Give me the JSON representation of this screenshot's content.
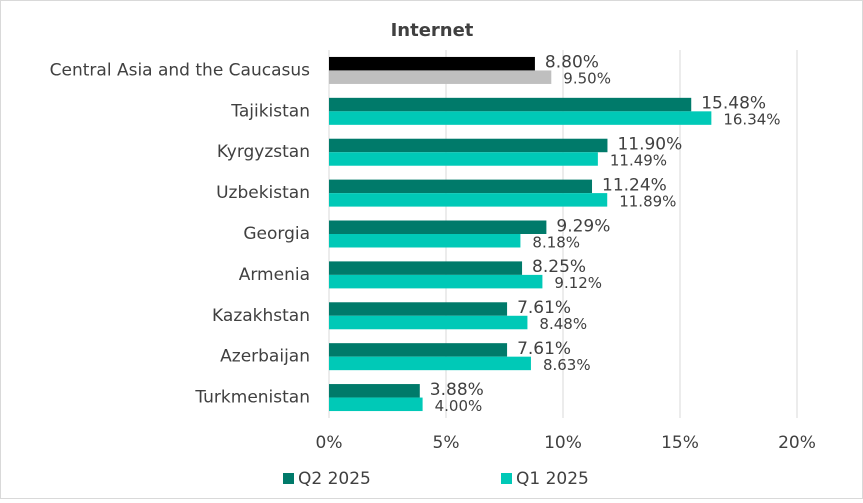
{
  "chart_data": {
    "type": "bar",
    "orientation": "horizontal",
    "title": "Internet",
    "categories": [
      "Central Asia and the Caucasus",
      "Tajikistan",
      "Kyrgyzstan",
      "Uzbekistan",
      "Georgia",
      "Armenia",
      "Kazakhstan",
      "Azerbaijan",
      "Turkmenistan"
    ],
    "series": [
      {
        "name": "Q2 2025",
        "color": "#007a6a",
        "colors": [
          "#000000",
          "#007a6a",
          "#007a6a",
          "#007a6a",
          "#007a6a",
          "#007a6a",
          "#007a6a",
          "#007a6a",
          "#007a6a"
        ],
        "values": [
          8.8,
          15.48,
          11.9,
          11.24,
          9.29,
          8.25,
          7.61,
          7.61,
          3.88
        ],
        "value_labels": [
          "8.80%",
          "15.48%",
          "11.90%",
          "11.24%",
          "9.29%",
          "8.25%",
          "7.61%",
          "7.61%",
          "3.88%"
        ]
      },
      {
        "name": "Q1 2025",
        "color": "#00c9b7",
        "colors": [
          "#bfbfbf",
          "#00c9b7",
          "#00c9b7",
          "#00c9b7",
          "#00c9b7",
          "#00c9b7",
          "#00c9b7",
          "#00c9b7",
          "#00c9b7"
        ],
        "values": [
          9.5,
          16.34,
          11.49,
          11.89,
          8.18,
          9.12,
          8.48,
          8.63,
          4.0
        ],
        "value_labels": [
          "9.50%",
          "16.34%",
          "11.49%",
          "11.89%",
          "8.18%",
          "9.12%",
          "8.48%",
          "8.63%",
          "4.00%"
        ]
      }
    ],
    "xlim": [
      0,
      20
    ],
    "xticks": [
      {
        "value": 0,
        "label": "0%"
      },
      {
        "value": 5,
        "label": "5%"
      },
      {
        "value": 10,
        "label": "10%"
      },
      {
        "value": 15,
        "label": "15%"
      },
      {
        "value": 20,
        "label": "20%"
      }
    ],
    "grid": true,
    "legend": "bottom"
  }
}
